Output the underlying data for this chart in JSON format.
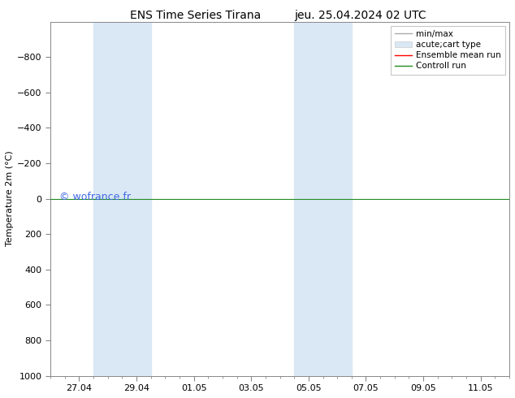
{
  "title_left": "ENS Time Series Tirana",
  "title_right": "jeu. 25.04.2024 02 UTC",
  "ylabel": "Temperature 2m (°C)",
  "background_color": "#ffffff",
  "plot_bg_color": "#ffffff",
  "xlim": [
    0,
    16
  ],
  "ylim_bottom": 1000,
  "ylim_top": -1000,
  "yticks": [
    -800,
    -600,
    -400,
    -200,
    0,
    200,
    400,
    600,
    800,
    1000
  ],
  "xtick_positions": [
    1,
    3,
    5,
    7,
    9,
    11,
    13,
    15
  ],
  "xtick_labels": [
    "27.04",
    "29.04",
    "01.05",
    "03.05",
    "05.05",
    "07.05",
    "09.05",
    "11.05"
  ],
  "shaded_bands": [
    {
      "xmin": 1.5,
      "xmax": 3.5,
      "color": "#dae8f5"
    },
    {
      "xmin": 8.5,
      "xmax": 10.5,
      "color": "#dae8f5"
    }
  ],
  "line_y": 0,
  "line_color_green": "#228B22",
  "watermark": "© wofrance.fr",
  "watermark_color": "#4169e1",
  "legend_entries": [
    {
      "label": "min/max",
      "color": "#aaaaaa",
      "lw": 1.0,
      "ls": "-",
      "type": "line"
    },
    {
      "label": "acute;cart type",
      "color": "#dae8f5",
      "type": "patch"
    },
    {
      "label": "Ensemble mean run",
      "color": "#ff0000",
      "lw": 1.0,
      "ls": "-",
      "type": "line"
    },
    {
      "label": "Controll run",
      "color": "#228B22",
      "lw": 1.0,
      "ls": "-",
      "type": "line"
    }
  ],
  "title_fontsize": 10,
  "ylabel_fontsize": 8,
  "tick_fontsize": 8,
  "legend_fontsize": 7.5,
  "watermark_fontsize": 9
}
